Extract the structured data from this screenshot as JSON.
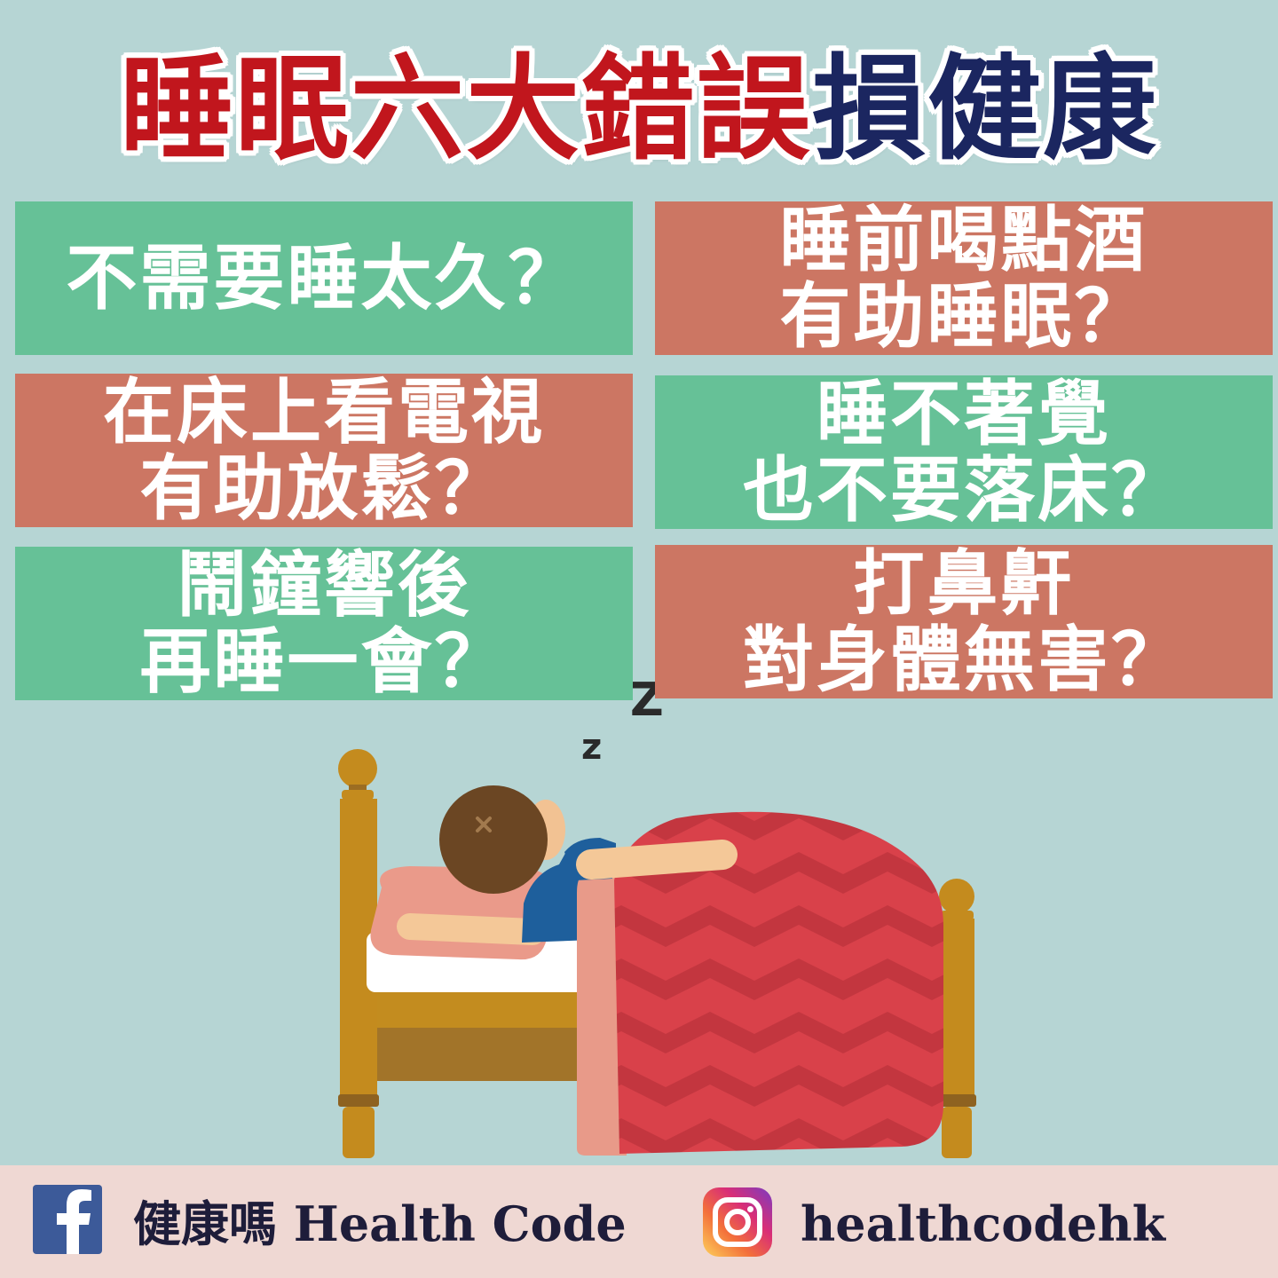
{
  "title": {
    "highlight": "睡眠六大錯誤",
    "rest": "損健康"
  },
  "myths": [
    {
      "lines": [
        "不需要睡太久？"
      ],
      "tone": "#66c197"
    },
    {
      "lines": [
        "睡前喝點酒",
        "有助睡眠？"
      ],
      "tone": "#cc7663"
    },
    {
      "lines": [
        "在床上看電視",
        "有助放鬆？"
      ],
      "tone": "#cc7663"
    },
    {
      "lines": [
        "睡不著覺",
        "也不要落床？"
      ],
      "tone": "#66c197"
    },
    {
      "lines": [
        "鬧鐘響後",
        "再睡一會？"
      ],
      "tone": "#66c197"
    },
    {
      "lines": [
        "打鼻鼾",
        "對身體無害？"
      ],
      "tone": "#cc7663"
    }
  ],
  "illustration": {
    "snore_small": "z",
    "snore_large": "Z"
  },
  "footer": {
    "facebook": {
      "icon": "facebook-icon",
      "label": "健康嗎 Health Code"
    },
    "instagram": {
      "icon": "instagram-icon",
      "label": "healthcodehk"
    }
  },
  "colors": {
    "background": "#b6d5d4",
    "title_red": "#c1161d",
    "title_navy": "#1b2660",
    "footer_band": "#efd8d3",
    "box_text": "#ffffff"
  }
}
